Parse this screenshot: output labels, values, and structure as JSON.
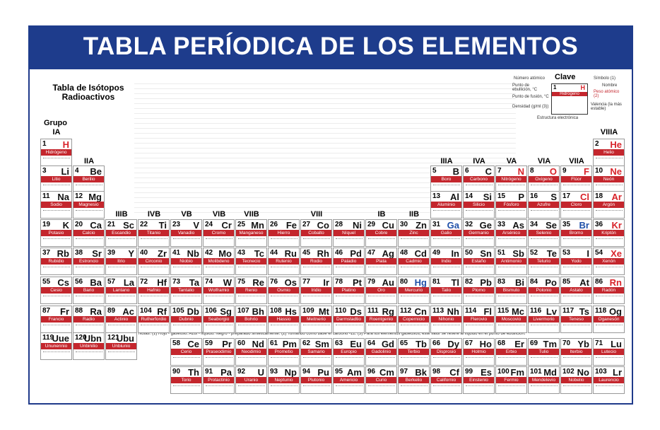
{
  "header": {
    "title": "TABLA PERÍODICA DE LOS ELEMENTOS"
  },
  "isotopes": {
    "title": "Tabla de Isótopos Radioactivos"
  },
  "group_label": "Grupo",
  "groups": {
    "a": [
      "IA",
      "IIA",
      "IIIA",
      "IVA",
      "VA",
      "VIA",
      "VIIA",
      "VIIIA"
    ],
    "b": [
      "IIIB",
      "IVB",
      "VB",
      "VIB",
      "VIIB",
      "VIII",
      "IB",
      "IIB"
    ]
  },
  "key": {
    "title": "Clave",
    "number_label": "Número atómico",
    "symbol_label": "Símbolo (1)",
    "name_label": "Nombre",
    "boil_label": "Punto de ebullición, °C",
    "melt_label": "Punto de fusión, °C",
    "density_label": "Densidad (g/ml (3))",
    "weight_label": "Peso atómico (2)",
    "valence_label": "Valencia (la más estable)",
    "structure_label": "Estructura electrónica",
    "sample_number": "1",
    "sample_symbol": "H",
    "sample_name": "Hidrógeno"
  },
  "notes": "Notas: (1) Rojo - gaseoso. Azul - líquido. Negro - preparado sintéticamente. (2) Tomando como base el carbono -12. (3) Para los elementos gaseosos, este valor se refiere al líquido en el punto de ebullición.",
  "table": {
    "periods": [
      [
        {
          "number": "1",
          "symbol": "H",
          "name": "Hidrógeno",
          "color": "#d8232a"
        },
        null,
        null,
        null,
        null,
        null,
        null,
        null,
        null,
        null,
        null,
        null,
        null,
        null,
        null,
        null,
        null,
        {
          "number": "2",
          "symbol": "He",
          "name": "Helio",
          "color": "#d8232a"
        }
      ],
      [
        {
          "number": "3",
          "symbol": "Li",
          "name": "Litio"
        },
        {
          "number": "4",
          "symbol": "Be",
          "name": "Berilio"
        },
        null,
        null,
        null,
        null,
        null,
        null,
        null,
        null,
        null,
        null,
        {
          "number": "5",
          "symbol": "B",
          "name": "Boro"
        },
        {
          "number": "6",
          "symbol": "C",
          "name": "Carbono"
        },
        {
          "number": "7",
          "symbol": "N",
          "name": "Nitrógeno",
          "color": "#d8232a"
        },
        {
          "number": "8",
          "symbol": "O",
          "name": "Oxígeno",
          "color": "#d8232a"
        },
        {
          "number": "9",
          "symbol": "F",
          "name": "Flúor",
          "color": "#d8232a"
        },
        {
          "number": "10",
          "symbol": "Ne",
          "name": "Neón",
          "color": "#d8232a"
        }
      ],
      [
        {
          "number": "11",
          "symbol": "Na",
          "name": "Sodio"
        },
        {
          "number": "12",
          "symbol": "Mg",
          "name": "Magnesio"
        },
        null,
        null,
        null,
        null,
        null,
        null,
        null,
        null,
        null,
        null,
        {
          "number": "13",
          "symbol": "Al",
          "name": "Aluminio"
        },
        {
          "number": "14",
          "symbol": "Si",
          "name": "Silicio"
        },
        {
          "number": "15",
          "symbol": "P",
          "name": "Fósforo"
        },
        {
          "number": "16",
          "symbol": "S",
          "name": "Azufre"
        },
        {
          "number": "17",
          "symbol": "Cl",
          "name": "Cloro",
          "color": "#d8232a"
        },
        {
          "number": "18",
          "symbol": "Ar",
          "name": "Argón",
          "color": "#d8232a"
        }
      ],
      [
        {
          "number": "19",
          "symbol": "K",
          "name": "Potasio"
        },
        {
          "number": "20",
          "symbol": "Ca",
          "name": "Calcio"
        },
        {
          "number": "21",
          "symbol": "Sc",
          "name": "Escandio"
        },
        {
          "number": "22",
          "symbol": "Ti",
          "name": "Titanio"
        },
        {
          "number": "23",
          "symbol": "V",
          "name": "Vanadio"
        },
        {
          "number": "24",
          "symbol": "Cr",
          "name": "Cromo"
        },
        {
          "number": "25",
          "symbol": "Mn",
          "name": "Manganeso"
        },
        {
          "number": "26",
          "symbol": "Fe",
          "name": "Hierro"
        },
        {
          "number": "27",
          "symbol": "Co",
          "name": "Cobalto"
        },
        {
          "number": "28",
          "symbol": "Ni",
          "name": "Níquel"
        },
        {
          "number": "29",
          "symbol": "Cu",
          "name": "Cobre"
        },
        {
          "number": "30",
          "symbol": "Zn",
          "name": "Zinc"
        },
        {
          "number": "31",
          "symbol": "Ga",
          "name": "Galio",
          "color": "#1f4fa8"
        },
        {
          "number": "32",
          "symbol": "Ge",
          "name": "Germanio"
        },
        {
          "number": "33",
          "symbol": "As",
          "name": "Arsénico"
        },
        {
          "number": "34",
          "symbol": "Se",
          "name": "Selenio"
        },
        {
          "number": "35",
          "symbol": "Br",
          "name": "Bromo",
          "color": "#1f4fa8"
        },
        {
          "number": "36",
          "symbol": "Kr",
          "name": "Kriptón",
          "color": "#d8232a"
        }
      ],
      [
        {
          "number": "37",
          "symbol": "Rb",
          "name": "Rubidio"
        },
        {
          "number": "38",
          "symbol": "Sr",
          "name": "Estroncio"
        },
        {
          "number": "39",
          "symbol": "Y",
          "name": "Itrio"
        },
        {
          "number": "40",
          "symbol": "Zr",
          "name": "Circonio"
        },
        {
          "number": "41",
          "symbol": "Nb",
          "name": "Niobio"
        },
        {
          "number": "42",
          "symbol": "Mo",
          "name": "Molibdeno"
        },
        {
          "number": "43",
          "symbol": "Tc",
          "name": "Tecnecio"
        },
        {
          "number": "44",
          "symbol": "Ru",
          "name": "Rutenio"
        },
        {
          "number": "45",
          "symbol": "Rh",
          "name": "Rodio"
        },
        {
          "number": "46",
          "symbol": "Pd",
          "name": "Paladio"
        },
        {
          "number": "47",
          "symbol": "Ag",
          "name": "Plata"
        },
        {
          "number": "48",
          "symbol": "Cd",
          "name": "Cadmio"
        },
        {
          "number": "49",
          "symbol": "In",
          "name": "Indio"
        },
        {
          "number": "50",
          "symbol": "Sn",
          "name": "Estaño"
        },
        {
          "number": "51",
          "symbol": "Sb",
          "name": "Antimonio"
        },
        {
          "number": "52",
          "symbol": "Te",
          "name": "Telurio"
        },
        {
          "number": "53",
          "symbol": "I",
          "name": "Yodo"
        },
        {
          "number": "54",
          "symbol": "Xe",
          "name": "Xenón",
          "color": "#d8232a"
        }
      ],
      [
        {
          "number": "55",
          "symbol": "Cs",
          "name": "Cesio"
        },
        {
          "number": "56",
          "symbol": "Ba",
          "name": "Bario"
        },
        {
          "number": "57",
          "symbol": "La",
          "name": "Lantano"
        },
        {
          "number": "72",
          "symbol": "Hf",
          "name": "Hafnio"
        },
        {
          "number": "73",
          "symbol": "Ta",
          "name": "Tantalio"
        },
        {
          "number": "74",
          "symbol": "W",
          "name": "Wolframio"
        },
        {
          "number": "75",
          "symbol": "Re",
          "name": "Renio"
        },
        {
          "number": "76",
          "symbol": "Os",
          "name": "Osmio"
        },
        {
          "number": "77",
          "symbol": "Ir",
          "name": "Iridio"
        },
        {
          "number": "78",
          "symbol": "Pt",
          "name": "Platino"
        },
        {
          "number": "79",
          "symbol": "Au",
          "name": "Oro"
        },
        {
          "number": "80",
          "symbol": "Hg",
          "name": "Mercurio",
          "color": "#1f4fa8"
        },
        {
          "number": "81",
          "symbol": "Tl",
          "name": "Talio"
        },
        {
          "number": "82",
          "symbol": "Pb",
          "name": "Plomo"
        },
        {
          "number": "83",
          "symbol": "Bi",
          "name": "Bismuto"
        },
        {
          "number": "84",
          "symbol": "Po",
          "name": "Polonio"
        },
        {
          "number": "85",
          "symbol": "At",
          "name": "Astato"
        },
        {
          "number": "86",
          "symbol": "Rn",
          "name": "Radón",
          "color": "#d8232a"
        }
      ],
      [
        {
          "number": "87",
          "symbol": "Fr",
          "name": "Francio"
        },
        {
          "number": "88",
          "symbol": "Ra",
          "name": "Radio"
        },
        {
          "number": "89",
          "symbol": "Ac",
          "name": "Actinio"
        },
        {
          "number": "104",
          "symbol": "Rf",
          "name": "Rutherfordio"
        },
        {
          "number": "105",
          "symbol": "Db",
          "name": "Dubnio"
        },
        {
          "number": "106",
          "symbol": "Sg",
          "name": "Seaborgio"
        },
        {
          "number": "107",
          "symbol": "Bh",
          "name": "Bohrio"
        },
        {
          "number": "108",
          "symbol": "Hs",
          "name": "Hassio"
        },
        {
          "number": "109",
          "symbol": "Mt",
          "name": "Meitnerio"
        },
        {
          "number": "110",
          "symbol": "Ds",
          "name": "Darmstadtio"
        },
        {
          "number": "111",
          "symbol": "Rg",
          "name": "Roentgenio"
        },
        {
          "number": "112",
          "symbol": "Cn",
          "name": "Copernicio"
        },
        {
          "number": "113",
          "symbol": "Nh",
          "name": "Nihonio"
        },
        {
          "number": "114",
          "symbol": "Fl",
          "name": "Flerovio"
        },
        {
          "number": "115",
          "symbol": "Mc",
          "name": "Moscovio"
        },
        {
          "number": "116",
          "symbol": "Lv",
          "name": "Livermorio"
        },
        {
          "number": "117",
          "symbol": "Ts",
          "name": "Teneso"
        },
        {
          "number": "118",
          "symbol": "Og",
          "name": "Oganesón"
        }
      ]
    ],
    "extra": [
      {
        "number": "119",
        "symbol": "Uue",
        "name": "Ununennio"
      },
      {
        "number": "120",
        "symbol": "Ubn",
        "name": "Unbinilio"
      },
      {
        "number": "121",
        "symbol": "Ubu",
        "name": "Unbiunio"
      }
    ],
    "lanthanides": [
      {
        "number": "58",
        "symbol": "Ce",
        "name": "Cerio"
      },
      {
        "number": "59",
        "symbol": "Pr",
        "name": "Praseodimio"
      },
      {
        "number": "60",
        "symbol": "Nd",
        "name": "Neodimio"
      },
      {
        "number": "61",
        "symbol": "Pm",
        "name": "Prometio"
      },
      {
        "number": "62",
        "symbol": "Sm",
        "name": "Samario"
      },
      {
        "number": "63",
        "symbol": "Eu",
        "name": "Europio"
      },
      {
        "number": "64",
        "symbol": "Gd",
        "name": "Gadolinio"
      },
      {
        "number": "65",
        "symbol": "Tb",
        "name": "Terbio"
      },
      {
        "number": "66",
        "symbol": "Dy",
        "name": "Disprosio"
      },
      {
        "number": "67",
        "symbol": "Ho",
        "name": "Holmio"
      },
      {
        "number": "68",
        "symbol": "Er",
        "name": "Erbio"
      },
      {
        "number": "69",
        "symbol": "Tm",
        "name": "Tulio"
      },
      {
        "number": "70",
        "symbol": "Yb",
        "name": "Iterbio"
      },
      {
        "number": "71",
        "symbol": "Lu",
        "name": "Lutecio"
      }
    ],
    "actinides": [
      {
        "number": "90",
        "symbol": "Th",
        "name": "Torio"
      },
      {
        "number": "91",
        "symbol": "Pa",
        "name": "Protactinio"
      },
      {
        "number": "92",
        "symbol": "U",
        "name": "Uranio"
      },
      {
        "number": "93",
        "symbol": "Np",
        "name": "Neptunio"
      },
      {
        "number": "94",
        "symbol": "Pu",
        "name": "Plutonio"
      },
      {
        "number": "95",
        "symbol": "Am",
        "name": "Americio"
      },
      {
        "number": "96",
        "symbol": "Cm",
        "name": "Curio"
      },
      {
        "number": "97",
        "symbol": "Bk",
        "name": "Berkelio"
      },
      {
        "number": "98",
        "symbol": "Cf",
        "name": "Californio"
      },
      {
        "number": "99",
        "symbol": "Es",
        "name": "Einstenio"
      },
      {
        "number": "100",
        "symbol": "Fm",
        "name": "Fermio"
      },
      {
        "number": "101",
        "symbol": "Md",
        "name": "Mendelevio"
      },
      {
        "number": "102",
        "symbol": "No",
        "name": "Nobelio"
      },
      {
        "number": "103",
        "symbol": "Lr",
        "name": "Laurencio"
      }
    ]
  }
}
